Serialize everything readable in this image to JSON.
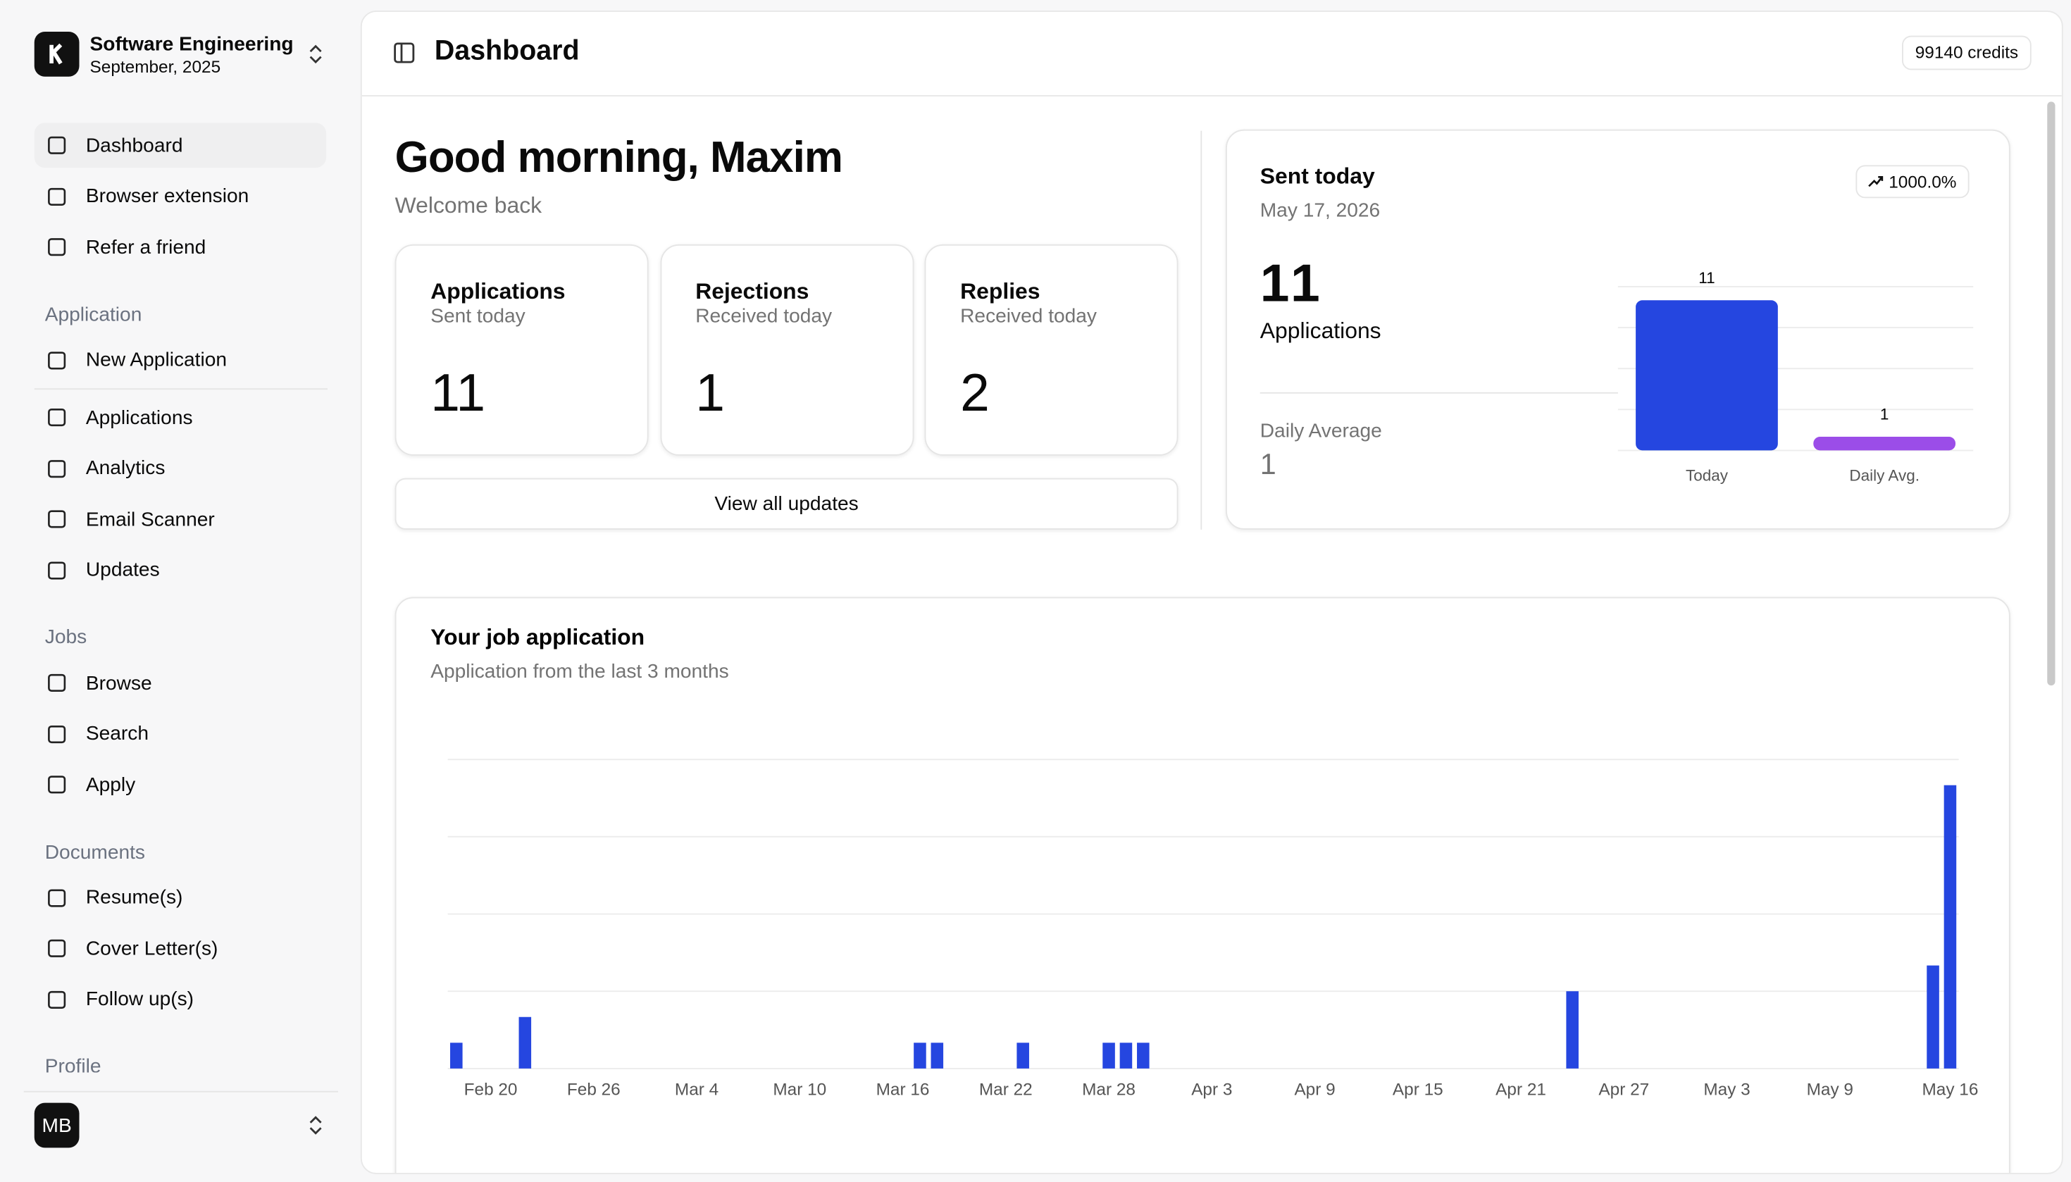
{
  "workspace": {
    "name": "Software Engineering",
    "period": "September, 2025"
  },
  "nav": {
    "main": [
      "Dashboard",
      "Browser extension",
      "Refer a friend"
    ],
    "sections": [
      {
        "title": "Application",
        "items": [
          "New Application",
          "Applications",
          "Analytics",
          "Email Scanner",
          "Updates"
        ]
      },
      {
        "title": "Jobs",
        "items": [
          "Browse",
          "Search",
          "Apply"
        ]
      },
      {
        "title": "Documents",
        "items": [
          "Resume(s)",
          "Cover Letter(s)",
          "Follow up(s)"
        ]
      },
      {
        "title": "Profile",
        "items": []
      }
    ]
  },
  "user": {
    "initials": "MB"
  },
  "header": {
    "title": "Dashboard",
    "credits": "99140 credits"
  },
  "greeting": {
    "title": "Good morning, Maxim",
    "subtitle": "Welcome back"
  },
  "stats": [
    {
      "title": "Applications",
      "subtitle": "Sent today",
      "value": 11
    },
    {
      "title": "Rejections",
      "subtitle": "Received today",
      "value": 1
    },
    {
      "title": "Replies",
      "subtitle": "Received today",
      "value": 2
    }
  ],
  "view_all": "View all updates",
  "sent_today": {
    "title": "Sent today",
    "date": "May 17, 2026",
    "change": "1000.0%",
    "count": 11,
    "count_label": "Applications",
    "avg_label": "Daily Average",
    "avg": 1
  },
  "chart_data": [
    {
      "type": "bar",
      "categories": [
        "Today",
        "Daily Avg."
      ],
      "values": [
        11,
        1
      ],
      "colors": [
        "#2546e0",
        "#9b4de8"
      ],
      "ylim": [
        0,
        12
      ],
      "yticks": [
        0,
        3,
        6,
        9,
        12
      ],
      "grid": true,
      "data_labels": true
    },
    {
      "type": "bar",
      "title": "Your job application",
      "subtitle": "Application from the last 3 months",
      "categories": [
        null,
        null,
        "Feb 20",
        null,
        null,
        null,
        null,
        null,
        "Feb 26",
        null,
        null,
        null,
        null,
        null,
        "Mar 4",
        null,
        null,
        null,
        null,
        null,
        "Mar 10",
        null,
        null,
        null,
        null,
        null,
        "Mar 16",
        null,
        null,
        null,
        null,
        null,
        "Mar 22",
        null,
        null,
        null,
        null,
        null,
        "Mar 28",
        null,
        null,
        null,
        null,
        null,
        "Apr 3",
        null,
        null,
        null,
        null,
        null,
        "Apr 9",
        null,
        null,
        null,
        null,
        null,
        "Apr 15",
        null,
        null,
        null,
        null,
        null,
        "Apr 21",
        null,
        null,
        null,
        null,
        null,
        "Apr 27",
        null,
        null,
        null,
        null,
        null,
        "May 3",
        null,
        null,
        null,
        null,
        null,
        "May 9",
        null,
        null,
        null,
        null,
        null,
        null,
        "May 16"
      ],
      "values": [
        1,
        0,
        0,
        0,
        2,
        0,
        0,
        0,
        0,
        0,
        0,
        0,
        0,
        0,
        0,
        0,
        0,
        0,
        0,
        0,
        0,
        0,
        0,
        0,
        0,
        0,
        0,
        1,
        1,
        0,
        0,
        0,
        0,
        1,
        0,
        0,
        0,
        0,
        1,
        1,
        1,
        0,
        0,
        0,
        0,
        0,
        0,
        0,
        0,
        0,
        0,
        0,
        0,
        0,
        0,
        0,
        0,
        0,
        0,
        0,
        0,
        0,
        0,
        0,
        0,
        3,
        0,
        0,
        0,
        0,
        0,
        0,
        0,
        0,
        0,
        0,
        0,
        0,
        0,
        0,
        0,
        0,
        0,
        0,
        0,
        0,
        4,
        11
      ],
      "color": "#2546e0",
      "ylim": [
        0,
        12
      ],
      "yticks": [
        0,
        3,
        6,
        9,
        12
      ],
      "grid": true
    }
  ]
}
